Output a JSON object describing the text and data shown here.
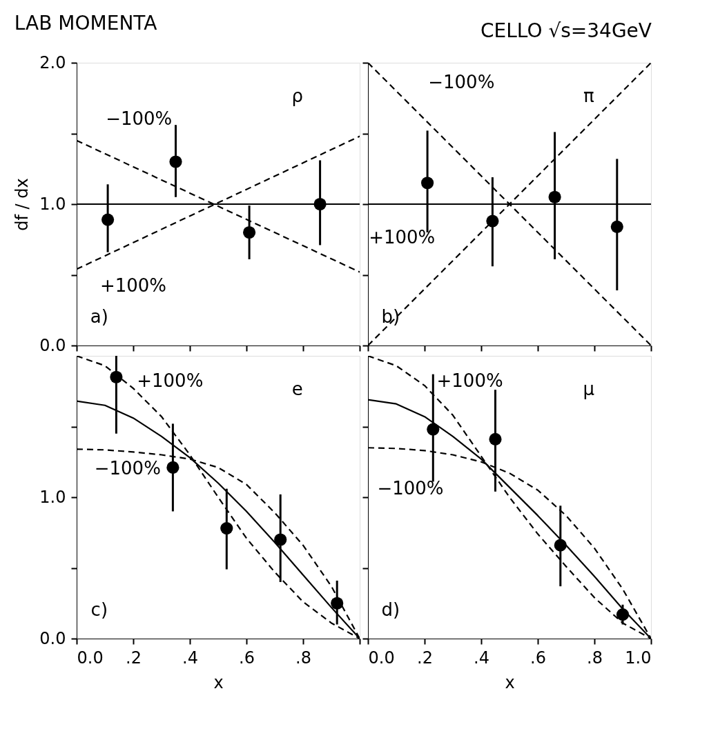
{
  "chart_data": [
    {
      "type": "scatter",
      "title": "LAB  MOMENTA",
      "ylabel": "df / dx",
      "xlim": [
        0.0,
        1.0
      ],
      "ylim": [
        0.0,
        2.0
      ],
      "xticks": [
        0.0,
        0.2,
        0.4,
        0.6,
        0.8,
        1.0
      ],
      "yticks": [
        {
          "value": 0,
          "label": "0.0"
        },
        {
          "value": 0.5,
          "label": null
        },
        {
          "value": 1,
          "label": "1.0"
        },
        {
          "value": 1.5,
          "label": null
        },
        {
          "value": 2,
          "label": "2.0"
        }
      ],
      "tick_labels": "y",
      "annotations": [
        "ρ",
        "a)"
      ],
      "ref_lines": [
        {
          "axis": "y",
          "value": 1.0,
          "color": "#000000",
          "line_style": "solid"
        }
      ],
      "series": [
        {
          "type": "scatter",
          "marker": "circle",
          "color": "#000000",
          "x": [
            0.11,
            0.35,
            0.61,
            0.86
          ],
          "values": [
            0.89,
            1.3,
            0.8,
            1.0
          ],
          "errors": [
            [
              0.66,
              1.14
            ],
            [
              1.05,
              1.56
            ],
            [
              0.61,
              0.99
            ],
            [
              0.71,
              1.31
            ]
          ]
        },
        {
          "name": "−100%",
          "type": "line",
          "line_style": "dashed",
          "color": "#000000",
          "x": [
            0.0,
            1.0
          ],
          "values": [
            1.45,
            0.52
          ]
        },
        {
          "name": "+100%",
          "type": "line",
          "line_style": "dashed",
          "color": "#000000",
          "x": [
            0.0,
            1.0
          ],
          "values": [
            0.54,
            1.48
          ]
        }
      ]
    },
    {
      "type": "scatter",
      "title": "CELLO √s=34GeV",
      "xlim": [
        0.0,
        1.0
      ],
      "ylim": [
        0.0,
        2.0
      ],
      "xticks": [
        0.0,
        0.2,
        0.4,
        0.6,
        0.8,
        1.0
      ],
      "yticks": [
        0.0,
        0.5,
        1.0,
        1.5,
        2.0
      ],
      "tick_labels": false,
      "annotations": [
        "π",
        "b)"
      ],
      "ref_lines": [
        {
          "axis": "y",
          "value": 1.0,
          "color": "#000000",
          "line_style": "solid"
        }
      ],
      "series": [
        {
          "type": "scatter",
          "marker": "circle",
          "color": "#000000",
          "x": [
            0.21,
            0.44,
            0.66,
            0.88
          ],
          "values": [
            1.15,
            0.88,
            1.05,
            0.84
          ],
          "errors": [
            [
              0.8,
              1.52
            ],
            [
              0.56,
              1.19
            ],
            [
              0.61,
              1.51
            ],
            [
              0.39,
              1.32
            ]
          ]
        },
        {
          "name": "−100%",
          "type": "line",
          "line_style": "dashed",
          "color": "#000000",
          "x": [
            0.0,
            1.0
          ],
          "values": [
            2.0,
            0.0
          ]
        },
        {
          "name": "+100%",
          "type": "line",
          "line_style": "dashed",
          "color": "#000000",
          "x": [
            0.0,
            1.0
          ],
          "values": [
            0.0,
            2.0
          ]
        }
      ]
    },
    {
      "type": "scatter",
      "xlabel": "x",
      "xlim": [
        0.0,
        1.0
      ],
      "ylim": [
        0.0,
        2.0
      ],
      "xticks": [
        {
          "value": 0,
          "label": "0.0"
        },
        {
          "value": 0.2,
          "label": ".2"
        },
        {
          "value": 0.4,
          "label": ".4"
        },
        {
          "value": 0.6,
          "label": ".6"
        },
        {
          "value": 0.8,
          "label": ".8"
        },
        {
          "value": 1.0,
          "label": null
        }
      ],
      "yticks": [
        {
          "value": 0,
          "label": "0.0"
        },
        {
          "value": 0.5,
          "label": null
        },
        {
          "value": 1,
          "label": "1.0"
        },
        {
          "value": 1.5,
          "label": null
        }
      ],
      "annotations": [
        "e",
        "c)"
      ],
      "series": [
        {
          "type": "scatter",
          "marker": "circle",
          "color": "#000000",
          "x": [
            0.14,
            0.34,
            0.53,
            0.72,
            0.92
          ],
          "values": [
            1.85,
            1.21,
            0.78,
            0.7,
            0.25
          ],
          "errors": [
            [
              1.45,
              2.0
            ],
            [
              0.9,
              1.52
            ],
            [
              0.49,
              1.06
            ],
            [
              0.4,
              1.02
            ],
            [
              0.1,
              0.41
            ]
          ]
        },
        {
          "type": "line",
          "line_style": "solid",
          "color": "#000000",
          "x": [
            0.0,
            0.1,
            0.2,
            0.3,
            0.4,
            0.5,
            0.6,
            0.7,
            0.8,
            0.9,
            1.0
          ],
          "values": [
            1.68,
            1.65,
            1.56,
            1.43,
            1.28,
            1.1,
            0.9,
            0.68,
            0.45,
            0.22,
            0.0
          ]
        },
        {
          "name": "+100%",
          "type": "line",
          "line_style": "dashed",
          "color": "#000000",
          "x": [
            0.0,
            0.1,
            0.2,
            0.3,
            0.4,
            0.5,
            0.6,
            0.7,
            0.8,
            0.9,
            1.0
          ],
          "values": [
            2.0,
            1.93,
            1.77,
            1.57,
            1.3,
            1.0,
            0.71,
            0.47,
            0.26,
            0.11,
            0.0
          ]
        },
        {
          "name": "−100%",
          "type": "line",
          "line_style": "dashed",
          "color": "#000000",
          "x": [
            0.0,
            0.1,
            0.2,
            0.3,
            0.4,
            0.5,
            0.6,
            0.7,
            0.8,
            0.9,
            1.0
          ],
          "values": [
            1.34,
            1.335,
            1.32,
            1.3,
            1.27,
            1.21,
            1.09,
            0.89,
            0.66,
            0.37,
            0.0
          ]
        }
      ]
    },
    {
      "type": "scatter",
      "xlabel": "x",
      "xlim": [
        0.0,
        1.0
      ],
      "ylim": [
        0.0,
        2.0
      ],
      "xticks": [
        {
          "value": 0,
          "label": "0.0"
        },
        {
          "value": 0.2,
          "label": ".2"
        },
        {
          "value": 0.4,
          "label": ".4"
        },
        {
          "value": 0.6,
          "label": ".6"
        },
        {
          "value": 0.8,
          "label": ".8"
        },
        {
          "value": 1,
          "label": "1.0"
        }
      ],
      "yticks": [
        0.0,
        0.5,
        1.0,
        1.5
      ],
      "tick_labels": "x",
      "annotations": [
        "μ",
        "d)"
      ],
      "series": [
        {
          "type": "scatter",
          "marker": "circle",
          "color": "#000000",
          "x": [
            0.23,
            0.45,
            0.68,
            0.9
          ],
          "values": [
            1.48,
            1.41,
            0.66,
            0.17
          ],
          "errors": [
            [
              1.11,
              1.87
            ],
            [
              1.04,
              1.76
            ],
            [
              0.37,
              0.94
            ],
            [
              0.1,
              0.24
            ]
          ]
        },
        {
          "type": "line",
          "line_style": "solid",
          "color": "#000000",
          "x": [
            0.0,
            0.1,
            0.2,
            0.3,
            0.4,
            0.5,
            0.6,
            0.7,
            0.8,
            0.9,
            1.0
          ],
          "values": [
            1.69,
            1.66,
            1.57,
            1.43,
            1.27,
            1.07,
            0.87,
            0.66,
            0.44,
            0.21,
            0.0
          ]
        },
        {
          "name": "+100%",
          "type": "line",
          "line_style": "dashed",
          "color": "#000000",
          "x": [
            0.0,
            0.1,
            0.2,
            0.3,
            0.4,
            0.5,
            0.6,
            0.7,
            0.8,
            0.9,
            1.0
          ],
          "values": [
            2.0,
            1.93,
            1.79,
            1.58,
            1.29,
            1.0,
            0.74,
            0.51,
            0.29,
            0.11,
            0.0
          ]
        },
        {
          "name": "−100%",
          "type": "line",
          "line_style": "dashed",
          "color": "#000000",
          "x": [
            0.0,
            0.1,
            0.2,
            0.3,
            0.4,
            0.5,
            0.6,
            0.7,
            0.8,
            0.9,
            1.0
          ],
          "values": [
            1.35,
            1.345,
            1.33,
            1.3,
            1.25,
            1.17,
            1.05,
            0.87,
            0.64,
            0.35,
            0.0
          ]
        }
      ]
    }
  ]
}
